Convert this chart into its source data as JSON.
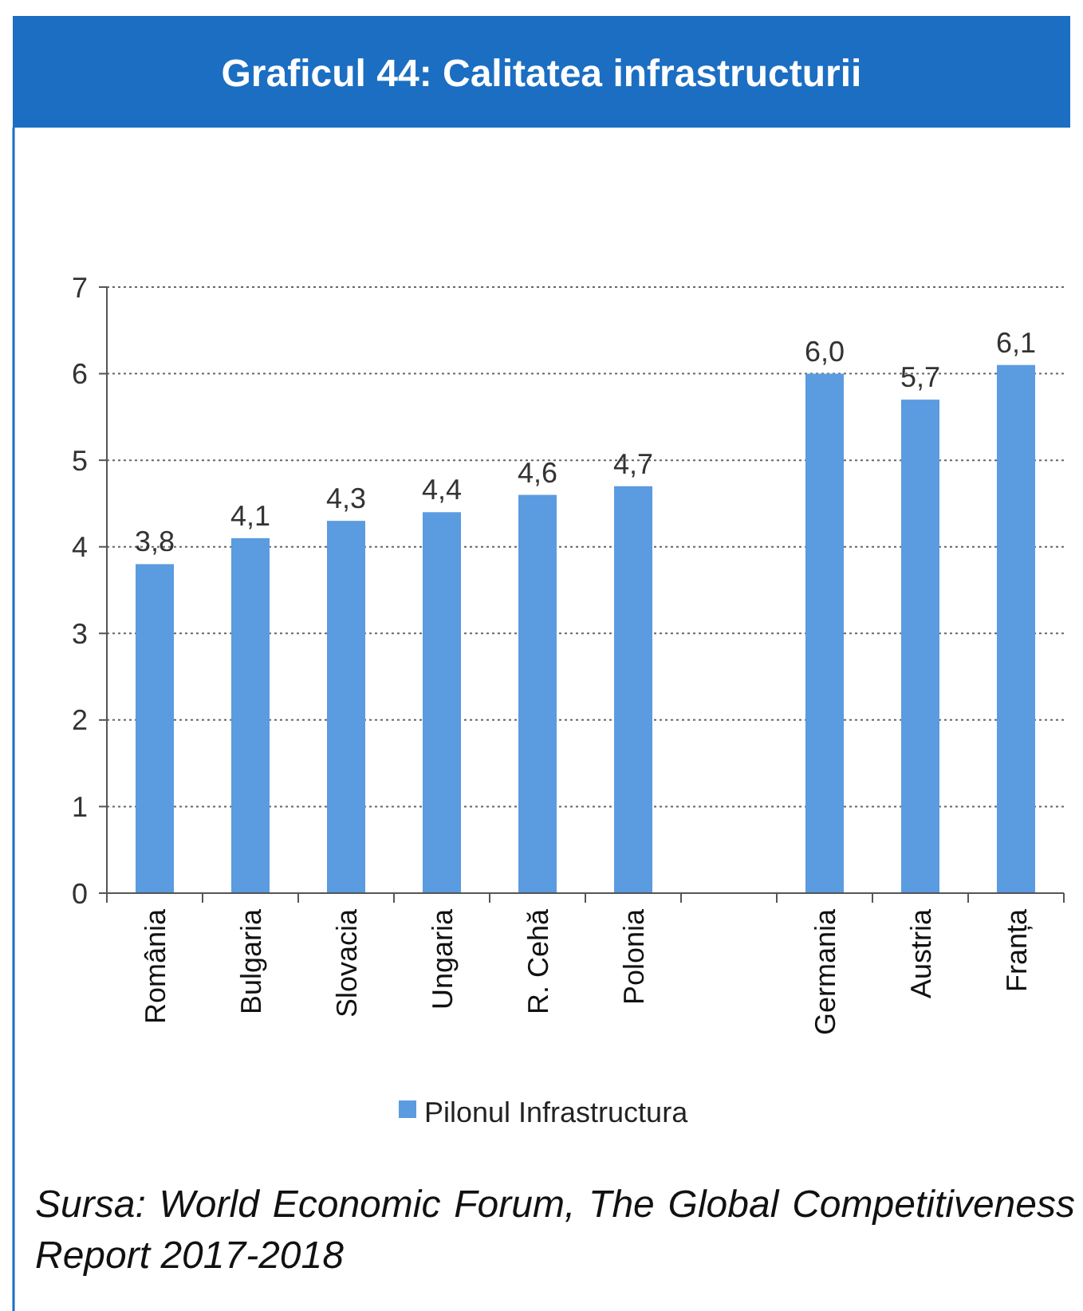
{
  "chart_data": {
    "type": "bar",
    "title": "Graficul 44: Calitatea infrastructurii",
    "categories": [
      "România",
      "Bulgaria",
      "Slovacia",
      "Ungaria",
      "R. Cehă",
      "Polonia",
      null,
      "Germania",
      "Austria",
      "Franța"
    ],
    "series": [
      {
        "name": "Pilonul Infrastructura",
        "color": "#5b9be0",
        "values": [
          3.8,
          4.1,
          4.3,
          4.4,
          4.6,
          4.7,
          null,
          6.0,
          5.7,
          6.1
        ],
        "value_labels": [
          "3,8",
          "4,1",
          "4,3",
          "4,4",
          "4,6",
          "4,7",
          null,
          "6,0",
          "5,7",
          "6,1"
        ]
      }
    ],
    "ylim": [
      0,
      7
    ],
    "yticks": [
      0,
      1,
      2,
      3,
      4,
      5,
      6,
      7
    ],
    "grid": "y",
    "legend": "bottom",
    "annotations": [
      "Sursa: World Economic Forum, The Global Competitiveness Report 2017-2018"
    ]
  }
}
